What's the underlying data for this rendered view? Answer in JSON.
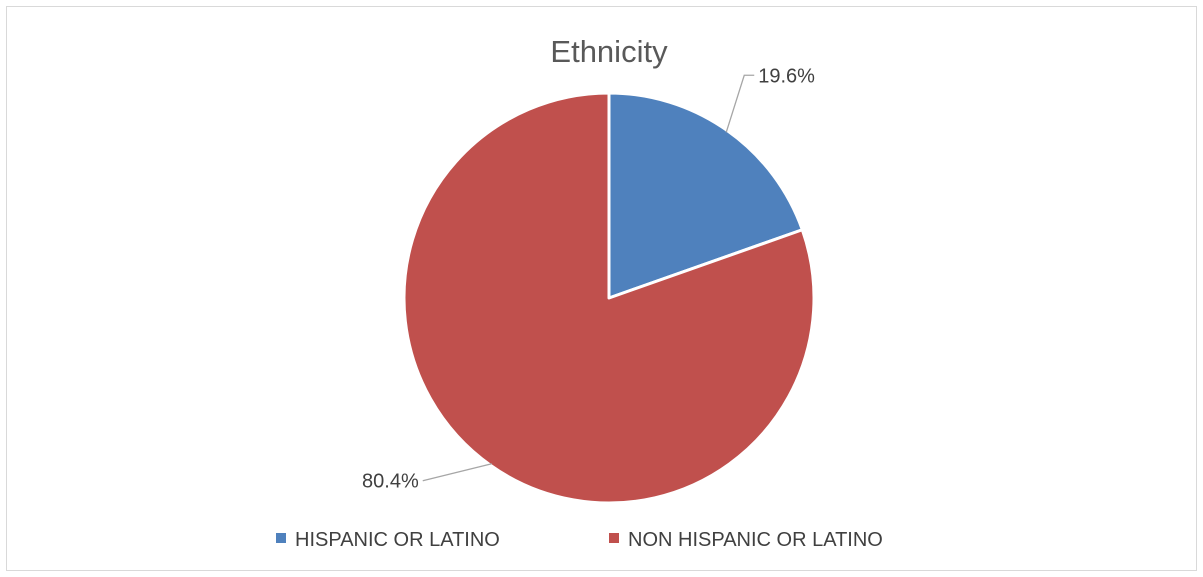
{
  "chart_data": {
    "type": "pie",
    "title": "Ethnicity",
    "categories": [
      "HISPANIC OR LATINO",
      "NON HISPANIC OR LATINO"
    ],
    "values": [
      19.6,
      80.4
    ],
    "data_labels": [
      "19.6%",
      "80.4%"
    ],
    "colors": [
      "#4f81bd",
      "#c0504d"
    ],
    "legend_position": "bottom",
    "start_angle": "12 o'clock, clockwise"
  }
}
